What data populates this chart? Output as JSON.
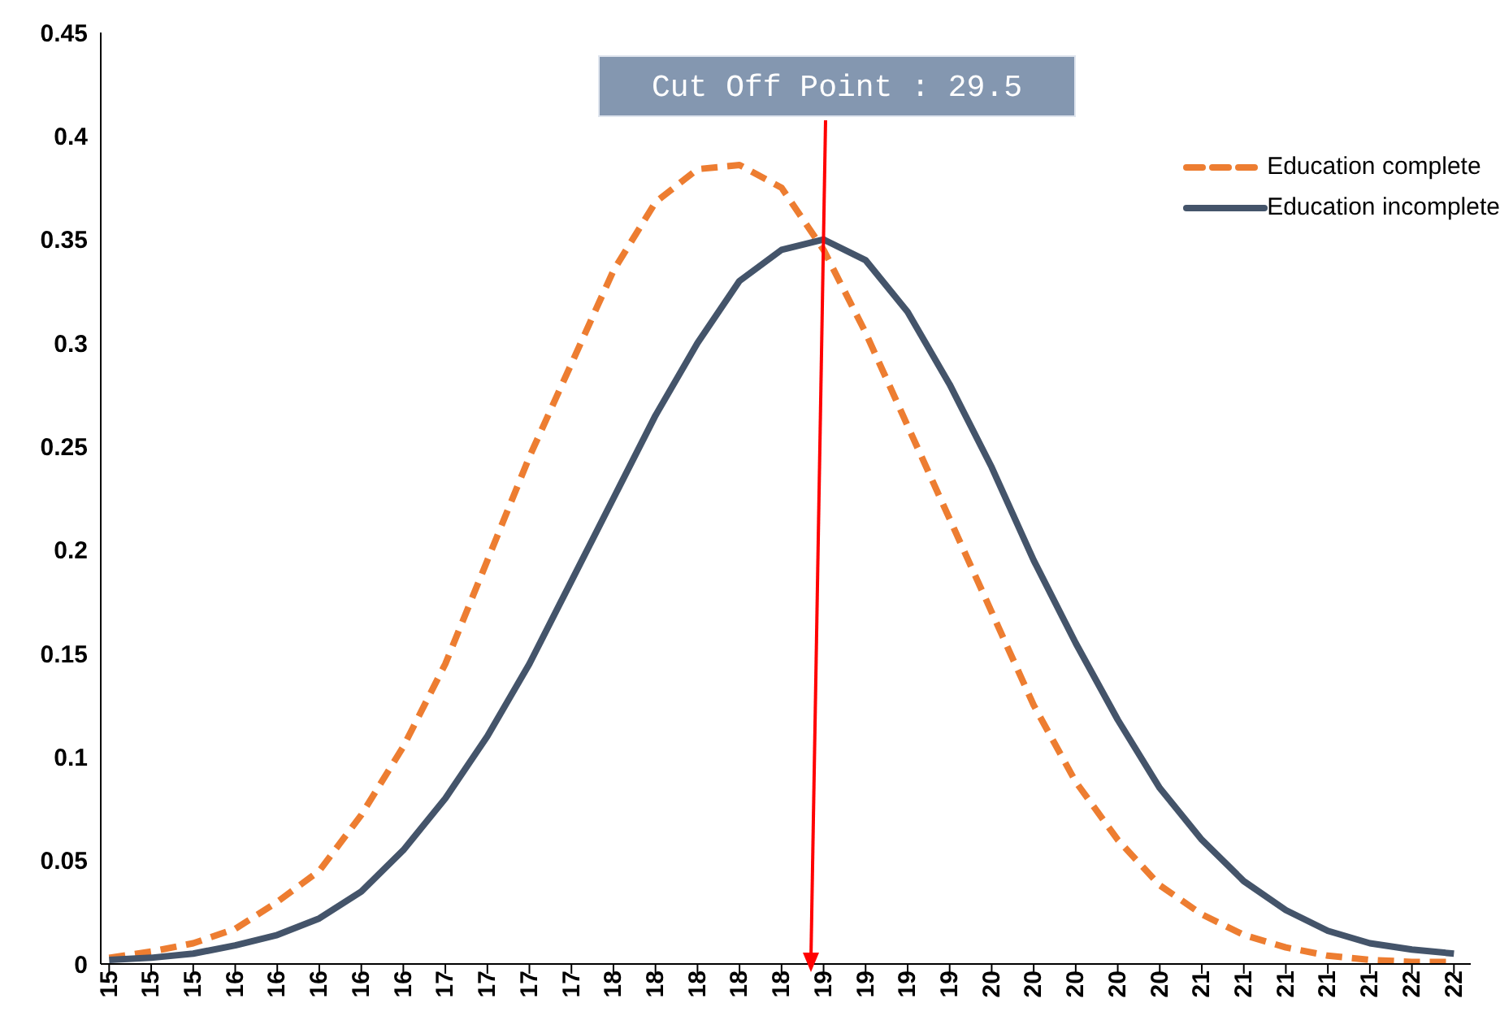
{
  "chart_data": {
    "type": "line",
    "categories": [
      "15",
      "15",
      "15",
      "16",
      "16",
      "16",
      "16",
      "16",
      "17",
      "17",
      "17",
      "17",
      "18",
      "18",
      "18",
      "18",
      "18",
      "19",
      "19",
      "19",
      "19",
      "20",
      "20",
      "20",
      "20",
      "20",
      "21",
      "21",
      "21",
      "21",
      "21",
      "22",
      "22"
    ],
    "series": [
      {
        "name": "Education complete",
        "color": "#ed7d31",
        "line_style": "dashed",
        "values": [
          0.003,
          0.006,
          0.01,
          0.017,
          0.03,
          0.045,
          0.072,
          0.105,
          0.145,
          0.195,
          0.245,
          0.29,
          0.335,
          0.368,
          0.384,
          0.386,
          0.375,
          0.345,
          0.305,
          0.26,
          0.215,
          0.17,
          0.125,
          0.088,
          0.06,
          0.038,
          0.024,
          0.014,
          0.008,
          0.004,
          0.002,
          0.001,
          0.001
        ]
      },
      {
        "name": "Education incomplete",
        "color": "#44546a",
        "line_style": "solid",
        "values": [
          0.002,
          0.003,
          0.005,
          0.009,
          0.014,
          0.022,
          0.035,
          0.055,
          0.08,
          0.11,
          0.145,
          0.185,
          0.225,
          0.265,
          0.3,
          0.33,
          0.345,
          0.35,
          0.34,
          0.315,
          0.28,
          0.24,
          0.195,
          0.155,
          0.118,
          0.085,
          0.06,
          0.04,
          0.026,
          0.016,
          0.01,
          0.007,
          0.005
        ]
      }
    ],
    "ylim": [
      0,
      0.45
    ],
    "yticks": [
      0,
      0.05,
      0.1,
      0.15,
      0.2,
      0.25,
      0.3,
      0.35,
      0.4,
      0.45
    ],
    "annotations": [
      "Cut Off Point : 29.5"
    ],
    "grid": false,
    "legend": "top right",
    "marker": "none"
  }
}
